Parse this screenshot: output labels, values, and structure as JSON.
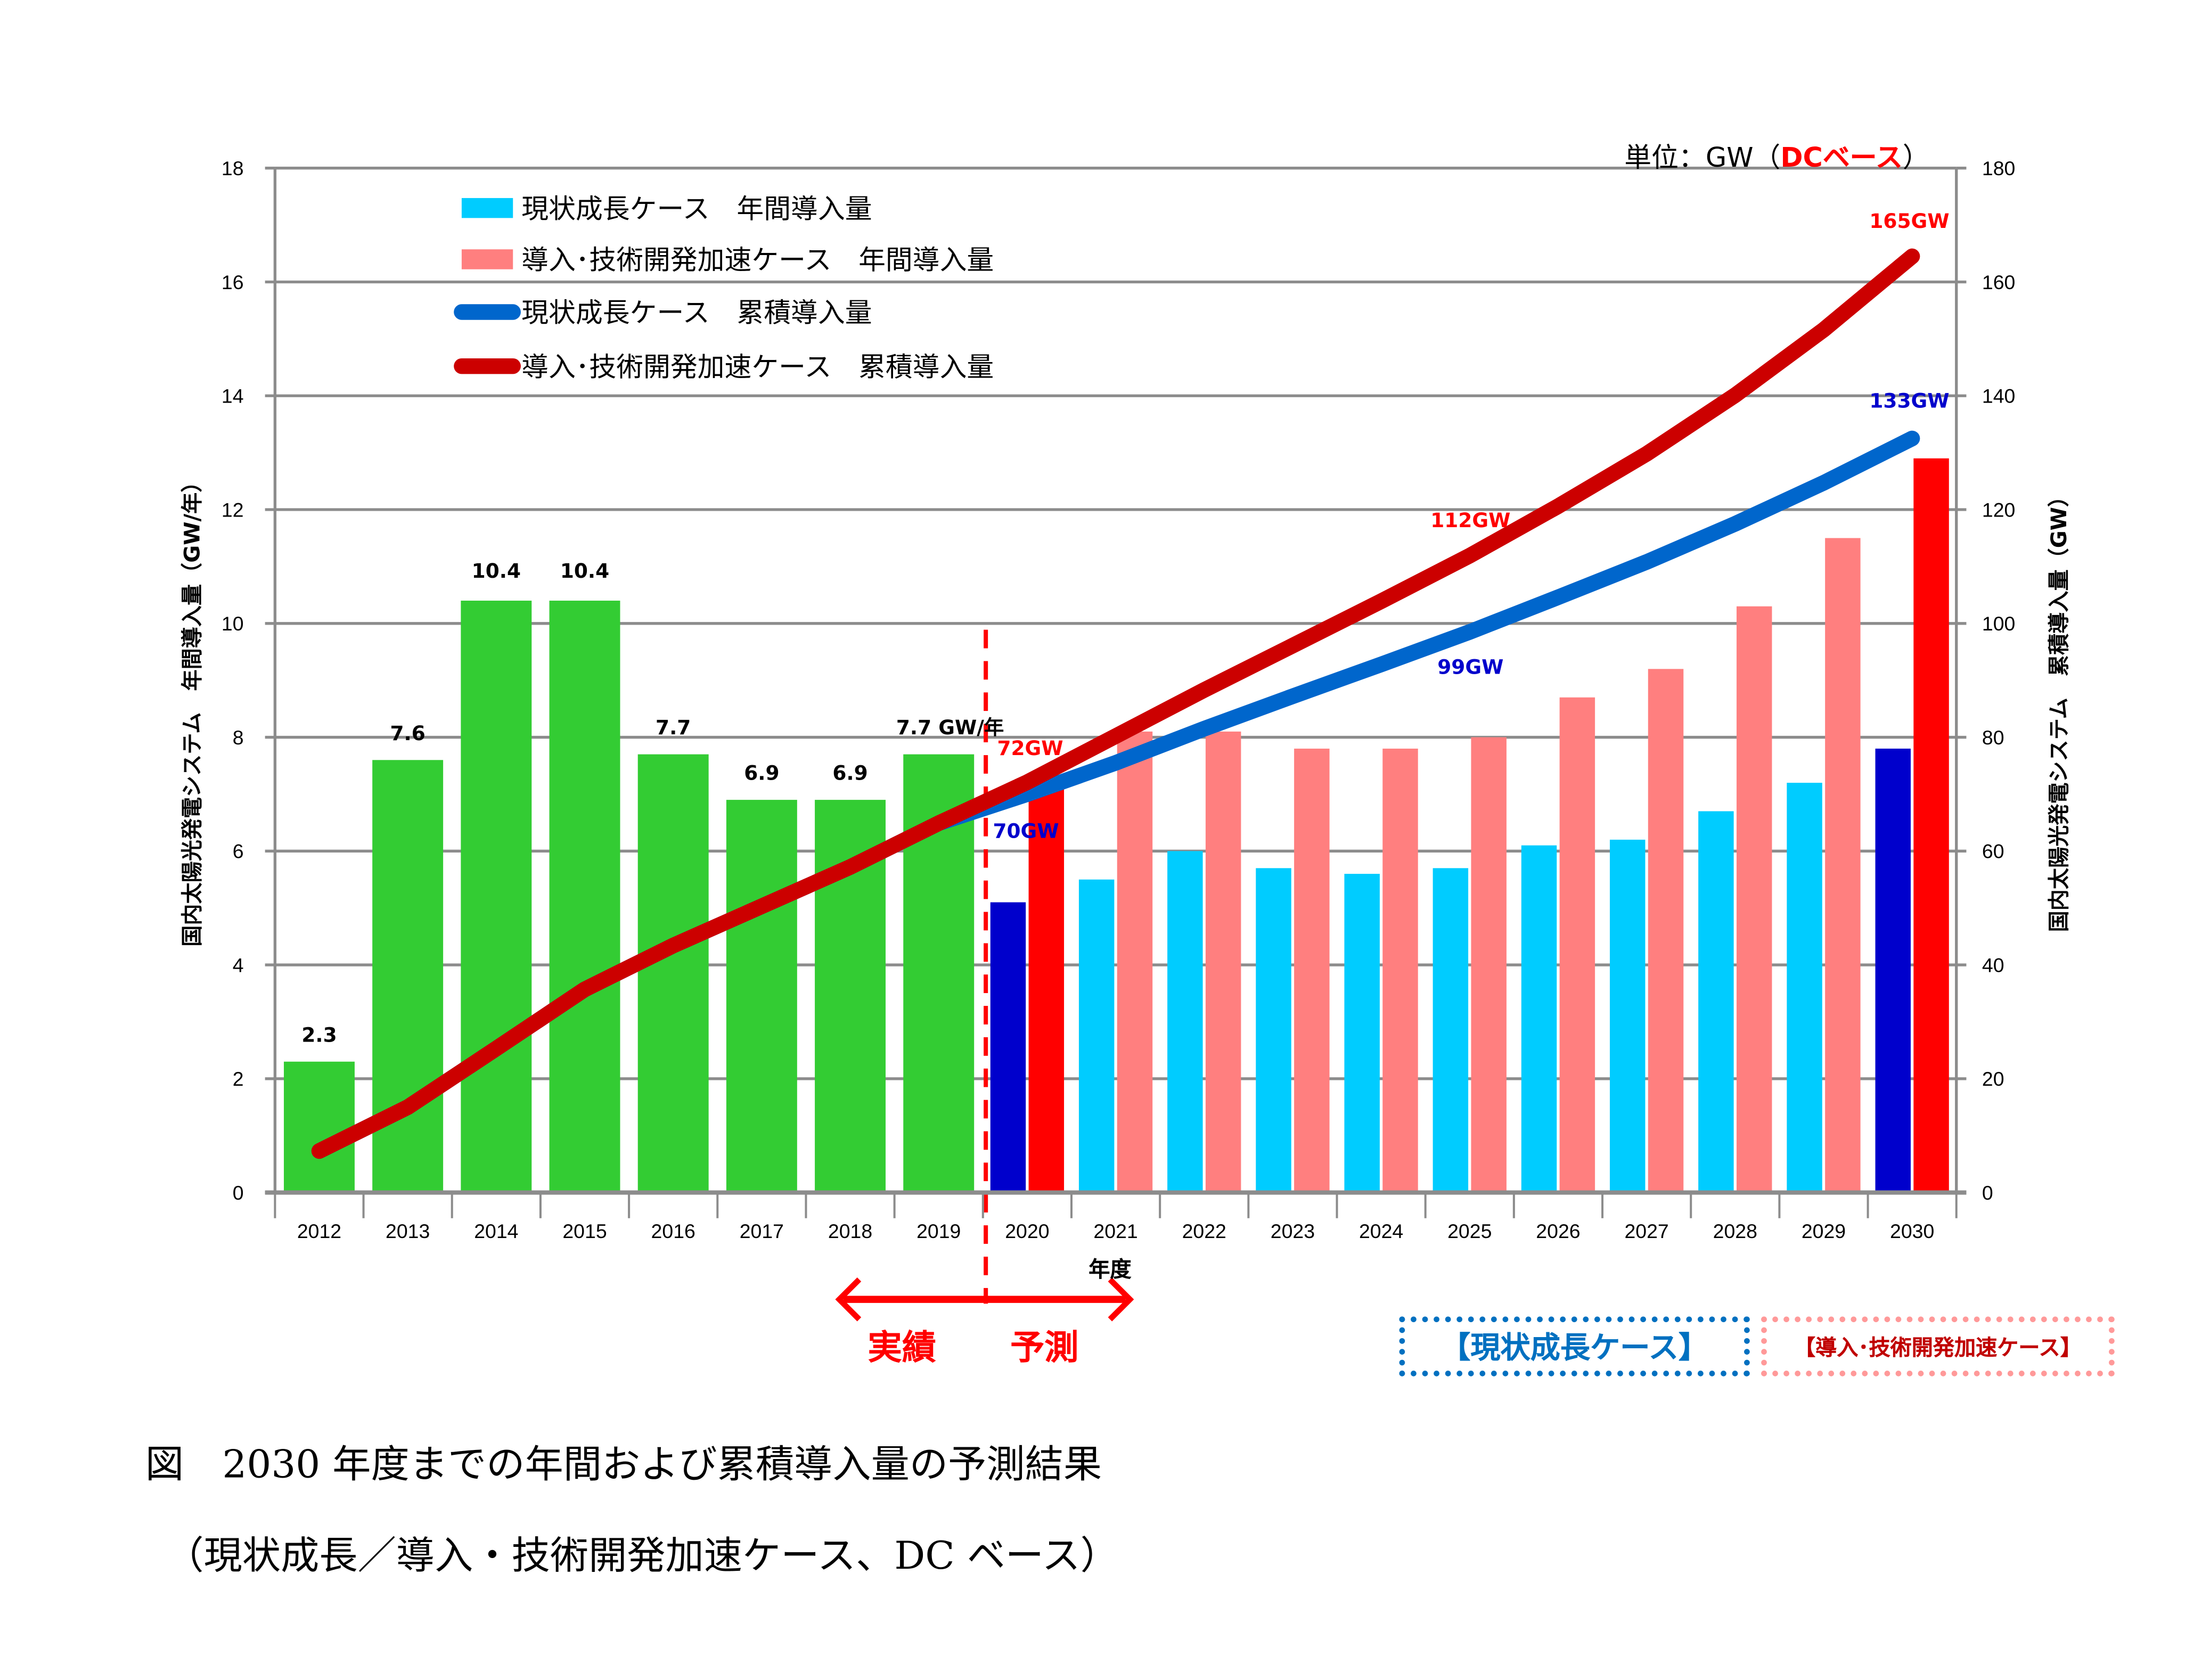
{
  "unit_label": {
    "prefix": "単位：GW（",
    "highlight": "DCベース",
    "suffix": "）"
  },
  "xaxis_title": "年度",
  "period_labels": {
    "actual": "実績",
    "forecast": "予測"
  },
  "case_boxes": {
    "current": "【現状成長ケース】",
    "accelerated": "【導入･技術開発加速ケース】"
  },
  "caption": {
    "line1": "図　2030 年度までの年間および累積導入量の予測結果",
    "line2": "（現状成長／導入・技術開発加速ケース、DC ベース）"
  },
  "colors": {
    "historical_bar": "#33cc33",
    "current_bar": "#00ccff",
    "accelerated_bar": "#ff7f7f",
    "current_bar_highlight": "#0000cc",
    "accelerated_bar_highlight": "#ff0000",
    "current_line": "#0066cc",
    "accelerated_line": "#cc0000",
    "current_label": "#0000cc",
    "accelerated_label": "#ff0000",
    "grid": "#8c8c8c",
    "divider": "#ff0000"
  },
  "chart_data": {
    "type": "bar+line",
    "title": "",
    "xlabel": "年度",
    "ylabel": "国内太陽光発電システム　年間導入量（GW/年）",
    "y2label": "国内太陽光発電システム　累積導入量（GW）",
    "ylim": [
      0,
      18
    ],
    "y2lim": [
      0,
      180
    ],
    "yticks": [
      "0",
      "2",
      "4",
      "6",
      "8",
      "10",
      "12",
      "14",
      "16",
      "18"
    ],
    "y2ticks": [
      "0",
      "20",
      "40",
      "60",
      "80",
      "100",
      "120",
      "140",
      "160",
      "180"
    ],
    "grid": true,
    "legend_position": "top-left",
    "categories": [
      "2012",
      "2013",
      "2014",
      "2015",
      "2016",
      "2017",
      "2018",
      "2019",
      "2020",
      "2021",
      "2022",
      "2023",
      "2024",
      "2025",
      "2026",
      "2027",
      "2028",
      "2029",
      "2030"
    ],
    "historical_annual": {
      "name": "実績 年間導入量",
      "values": [
        2.3,
        7.6,
        10.4,
        10.4,
        7.7,
        6.9,
        6.9,
        7.7,
        null,
        null,
        null,
        null,
        null,
        null,
        null,
        null,
        null,
        null,
        null
      ],
      "labels": [
        "2.3",
        "7.6",
        "10.4",
        "10.4",
        "7.7",
        "6.9",
        "6.9",
        "7.7 GW/年",
        "",
        "",
        "",
        "",
        "",
        "",
        "",
        "",
        "",
        "",
        ""
      ]
    },
    "series": [
      {
        "name": "現状成長ケース　年間導入量",
        "kind": "bar",
        "axis": "left",
        "values": [
          null,
          null,
          null,
          null,
          null,
          null,
          null,
          null,
          5.1,
          5.5,
          6.0,
          5.7,
          5.6,
          5.7,
          6.1,
          6.2,
          6.7,
          7.2,
          7.8
        ]
      },
      {
        "name": "導入･技術開発加速ケース　年間導入量",
        "kind": "bar",
        "axis": "left",
        "values": [
          null,
          null,
          null,
          null,
          null,
          null,
          null,
          null,
          7.2,
          8.1,
          8.1,
          7.8,
          7.8,
          8.0,
          8.7,
          9.2,
          10.3,
          11.5,
          12.9
        ]
      },
      {
        "name": "現状成長ケース　累積導入量",
        "kind": "line",
        "axis": "right",
        "values": [
          7.3,
          15.0,
          25.3,
          35.7,
          43.4,
          50.3,
          57.2,
          64.9,
          70.0,
          75.5,
          81.5,
          87.2,
          92.8,
          98.5,
          104.6,
          110.8,
          117.5,
          124.7,
          132.5
        ]
      },
      {
        "name": "導入･技術開発加速ケース　累積導入量",
        "kind": "line",
        "axis": "right",
        "values": [
          7.3,
          15.0,
          25.3,
          35.7,
          43.4,
          50.3,
          57.2,
          64.9,
          72.1,
          80.2,
          88.3,
          96.1,
          103.9,
          111.9,
          120.6,
          129.8,
          140.1,
          151.6,
          164.5
        ]
      }
    ],
    "highlighted_years": [
      "2020",
      "2030"
    ],
    "divider_between": [
      "2019",
      "2020"
    ],
    "annotations": [
      {
        "text": "72GW",
        "series": "accelerated",
        "category": "2020"
      },
      {
        "text": "70GW",
        "series": "current",
        "category": "2020"
      },
      {
        "text": "112GW",
        "series": "accelerated",
        "category": "2025"
      },
      {
        "text": "99GW",
        "series": "current",
        "category": "2025"
      },
      {
        "text": "165GW",
        "series": "accelerated",
        "category": "2030"
      },
      {
        "text": "133GW",
        "series": "current",
        "category": "2030"
      }
    ]
  }
}
